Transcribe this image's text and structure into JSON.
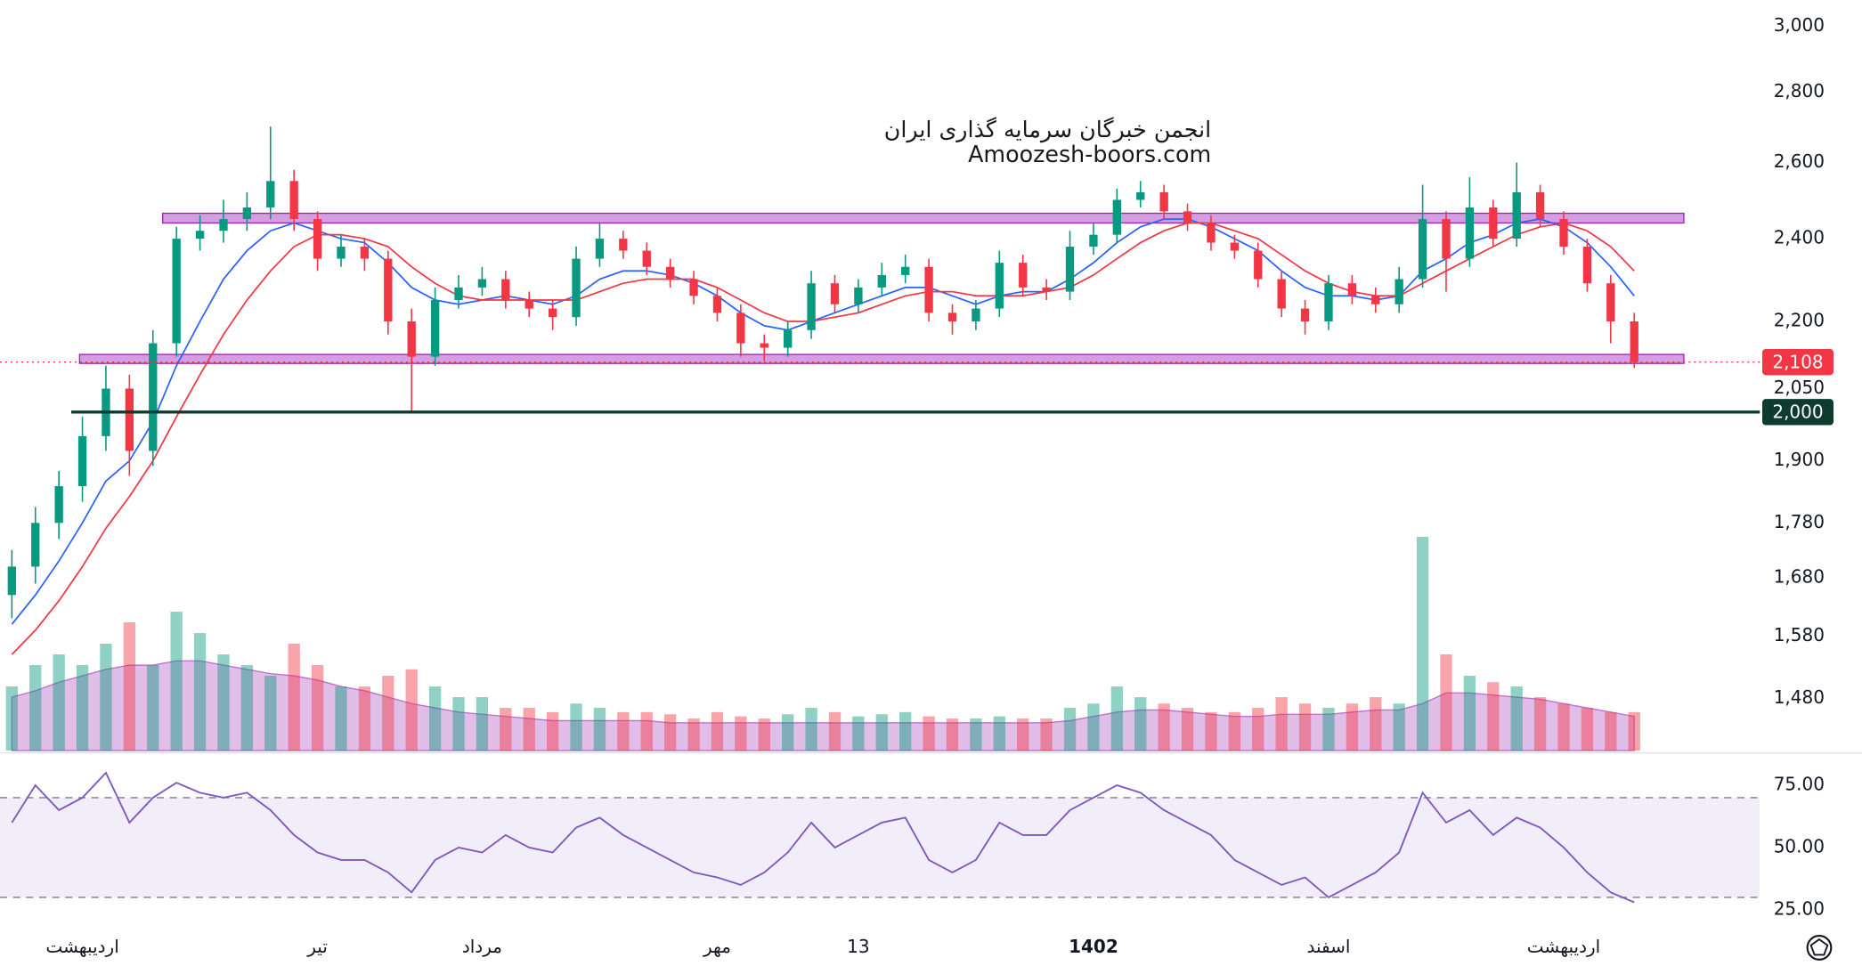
{
  "chart_data": [
    {
      "type": "candlestick",
      "log": true,
      "categories": [
        null,
        null,
        null,
        "اردیبهشت",
        null,
        null,
        null,
        null,
        null,
        null,
        null,
        null,
        null,
        "تیر",
        null,
        null,
        null,
        null,
        null,
        null,
        "مرداد",
        null,
        null,
        null,
        null,
        null,
        null,
        null,
        null,
        null,
        "مهر",
        null,
        null,
        null,
        null,
        null,
        "13",
        null,
        null,
        null,
        null,
        null,
        null,
        null,
        null,
        null,
        "1402",
        null,
        null,
        null,
        null,
        null,
        null,
        null,
        null,
        null,
        "اسفند",
        null,
        null,
        null,
        null,
        null,
        null,
        null,
        null,
        null,
        "اردیبهشت",
        null,
        null,
        null
      ],
      "open": [
        1650,
        1700,
        1780,
        1850,
        1950,
        2050,
        1920,
        2150,
        2400,
        2420,
        2450,
        2480,
        2550,
        2450,
        2350,
        2380,
        2350,
        2200,
        2120,
        2250,
        2280,
        2300,
        2250,
        2230,
        2210,
        2350,
        2400,
        2370,
        2330,
        2300,
        2260,
        2220,
        2150,
        2140,
        2180,
        2290,
        2240,
        2280,
        2310,
        2330,
        2220,
        2200,
        2230,
        2340,
        2280,
        2270,
        2380,
        2410,
        2500,
        2520,
        2470,
        2440,
        2390,
        2370,
        2300,
        2230,
        2200,
        2290,
        2260,
        2240,
        2300,
        2450,
        2350,
        2480,
        2400,
        2520,
        2450,
        2380,
        2290,
        2200
      ],
      "high": [
        1730,
        1810,
        1880,
        1990,
        2100,
        2080,
        2180,
        2430,
        2460,
        2500,
        2520,
        2700,
        2580,
        2470,
        2410,
        2400,
        2370,
        2230,
        2280,
        2310,
        2330,
        2320,
        2270,
        2250,
        2380,
        2440,
        2420,
        2390,
        2350,
        2320,
        2280,
        2240,
        2170,
        2200,
        2320,
        2310,
        2300,
        2340,
        2360,
        2350,
        2240,
        2250,
        2370,
        2360,
        2300,
        2420,
        2440,
        2530,
        2550,
        2540,
        2490,
        2460,
        2410,
        2390,
        2320,
        2250,
        2310,
        2310,
        2280,
        2330,
        2540,
        2470,
        2560,
        2500,
        2600,
        2540,
        2470,
        2400,
        2310,
        2220
      ],
      "low": [
        1610,
        1670,
        1750,
        1820,
        1920,
        1870,
        1890,
        2120,
        2370,
        2390,
        2420,
        2450,
        2420,
        2320,
        2330,
        2320,
        2170,
        2000,
        2100,
        2230,
        2260,
        2230,
        2210,
        2180,
        2190,
        2330,
        2350,
        2310,
        2280,
        2240,
        2200,
        2120,
        2110,
        2120,
        2160,
        2220,
        2220,
        2260,
        2290,
        2200,
        2170,
        2180,
        2210,
        2260,
        2250,
        2250,
        2360,
        2390,
        2480,
        2450,
        2420,
        2370,
        2350,
        2280,
        2210,
        2170,
        2180,
        2240,
        2220,
        2220,
        2280,
        2270,
        2330,
        2380,
        2380,
        2430,
        2360,
        2270,
        2150,
        2095
      ],
      "close": [
        1700,
        1780,
        1850,
        1950,
        2050,
        1920,
        2150,
        2400,
        2420,
        2450,
        2480,
        2550,
        2450,
        2350,
        2380,
        2350,
        2200,
        2120,
        2250,
        2280,
        2300,
        2250,
        2230,
        2210,
        2350,
        2400,
        2370,
        2330,
        2300,
        2260,
        2220,
        2150,
        2140,
        2180,
        2290,
        2240,
        2280,
        2310,
        2330,
        2220,
        2200,
        2230,
        2340,
        2280,
        2270,
        2380,
        2410,
        2500,
        2520,
        2470,
        2440,
        2390,
        2370,
        2300,
        2230,
        2200,
        2290,
        2260,
        2240,
        2300,
        2450,
        2350,
        2480,
        2400,
        2520,
        2450,
        2380,
        2290,
        2200,
        2108
      ],
      "up_color": "#089981",
      "down_color": "#f23645",
      "lines": [
        {
          "color": "#2962ff",
          "values": [
            1600,
            1650,
            1710,
            1780,
            1860,
            1900,
            1980,
            2100,
            2200,
            2300,
            2370,
            2420,
            2440,
            2420,
            2400,
            2390,
            2340,
            2280,
            2250,
            2240,
            2250,
            2260,
            2250,
            2240,
            2260,
            2300,
            2320,
            2320,
            2310,
            2290,
            2260,
            2220,
            2190,
            2180,
            2200,
            2220,
            2240,
            2260,
            2280,
            2280,
            2260,
            2240,
            2260,
            2270,
            2270,
            2300,
            2340,
            2390,
            2430,
            2450,
            2450,
            2430,
            2400,
            2370,
            2320,
            2280,
            2260,
            2260,
            2250,
            2260,
            2320,
            2350,
            2390,
            2410,
            2440,
            2450,
            2430,
            2390,
            2330,
            2260
          ]
        },
        {
          "color": "#f23645",
          "values": [
            1550,
            1590,
            1640,
            1700,
            1770,
            1830,
            1900,
            1990,
            2080,
            2170,
            2250,
            2320,
            2380,
            2410,
            2410,
            2400,
            2380,
            2330,
            2290,
            2260,
            2250,
            2250,
            2250,
            2250,
            2250,
            2270,
            2290,
            2300,
            2300,
            2300,
            2280,
            2250,
            2220,
            2200,
            2200,
            2210,
            2220,
            2240,
            2260,
            2270,
            2270,
            2260,
            2260,
            2260,
            2270,
            2280,
            2310,
            2350,
            2390,
            2420,
            2440,
            2440,
            2420,
            2400,
            2360,
            2320,
            2290,
            2270,
            2260,
            2260,
            2290,
            2320,
            2350,
            2380,
            2410,
            2430,
            2440,
            2420,
            2380,
            2320
          ]
        }
      ],
      "volume": {
        "lim": [
          0,
          100
        ],
        "ma_color": "#9c27b0",
        "values": [
          30,
          40,
          45,
          40,
          50,
          60,
          40,
          65,
          55,
          45,
          40,
          35,
          50,
          40,
          30,
          30,
          35,
          38,
          30,
          25,
          25,
          20,
          20,
          18,
          22,
          20,
          18,
          18,
          17,
          15,
          18,
          16,
          15,
          17,
          20,
          18,
          16,
          17,
          18,
          16,
          15,
          15,
          16,
          15,
          15,
          20,
          22,
          30,
          25,
          22,
          20,
          18,
          18,
          20,
          25,
          22,
          20,
          22,
          25,
          22,
          100,
          45,
          35,
          32,
          30,
          25,
          22,
          20,
          18,
          18
        ],
        "ma": [
          25,
          28,
          32,
          35,
          38,
          40,
          40,
          42,
          42,
          40,
          38,
          36,
          35,
          33,
          30,
          28,
          25,
          22,
          20,
          18,
          17,
          16,
          15,
          14,
          14,
          14,
          14,
          14,
          13,
          13,
          13,
          13,
          13,
          13,
          13,
          13,
          13,
          13,
          13,
          13,
          13,
          13,
          13,
          13,
          13,
          14,
          16,
          18,
          19,
          19,
          18,
          17,
          16,
          16,
          17,
          17,
          17,
          18,
          19,
          19,
          22,
          27,
          27,
          26,
          25,
          24,
          22,
          20,
          18,
          16
        ]
      },
      "zones": [
        {
          "from": 2440,
          "to": 2465,
          "color": "#c77dd8"
        },
        {
          "from": 2105,
          "to": 2125,
          "color": "#c77dd8"
        }
      ],
      "levels": [
        {
          "value": 2000,
          "label": "2,000",
          "color": "#0d3b2e",
          "style": "solid"
        },
        {
          "value": 2108,
          "label": "2,108",
          "color": "#f23645",
          "style": "dotted"
        }
      ],
      "ylim": [
        1401,
        3084
      ],
      "yticks": [
        {
          "value": 1480,
          "label": "1,480"
        },
        {
          "value": 1580,
          "label": "1,580"
        },
        {
          "value": 1680,
          "label": "1,680"
        },
        {
          "value": 1780,
          "label": "1,780"
        },
        {
          "value": 1900,
          "label": "1,900"
        },
        {
          "value": 2050,
          "label": "2,050"
        },
        {
          "value": 2200,
          "label": "2,200"
        },
        {
          "value": 2400,
          "label": "2,400"
        },
        {
          "value": 2600,
          "label": "2,600"
        },
        {
          "value": 2800,
          "label": "2,800"
        },
        {
          "value": 3000,
          "label": "3,000"
        }
      ],
      "watermark": [
        "انجمن خبرگان سرمایه گذاری ایران",
        "Amoozesh-boors.com"
      ]
    },
    {
      "type": "line",
      "color": "#7e57c2",
      "values": [
        60,
        75,
        65,
        70,
        80,
        60,
        70,
        76,
        72,
        70,
        72,
        65,
        55,
        48,
        45,
        45,
        40,
        32,
        45,
        50,
        48,
        55,
        50,
        48,
        58,
        62,
        55,
        50,
        45,
        40,
        38,
        35,
        40,
        48,
        60,
        50,
        55,
        60,
        62,
        45,
        40,
        45,
        60,
        55,
        55,
        65,
        70,
        75,
        72,
        65,
        60,
        55,
        45,
        40,
        35,
        38,
        30,
        35,
        40,
        48,
        72,
        60,
        65,
        55,
        62,
        58,
        50,
        40,
        32,
        28
      ],
      "bands": [
        30,
        70
      ],
      "ylim": [
        16,
        87
      ],
      "yticks": [
        {
          "value": 25,
          "label": "25.00"
        },
        {
          "value": 50,
          "label": "50.00"
        },
        {
          "value": 75,
          "label": "75.00"
        }
      ]
    }
  ]
}
